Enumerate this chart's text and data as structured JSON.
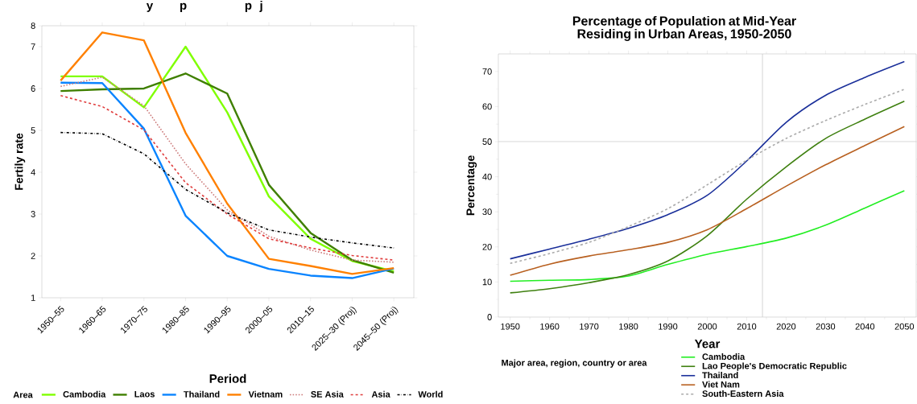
{
  "chart_data": [
    {
      "type": "line",
      "xlabel": "Period",
      "ylabel": "Fertily rate",
      "legend": "bottom",
      "legend_title": "Area",
      "annotations": [
        "y",
        "p",
        "p",
        "j"
      ],
      "categories": [
        "1950–55",
        "1960–65",
        "1970–75",
        "1980–85",
        "1990–95",
        "2000–05",
        "2010–15",
        "2025–30 (Proj)",
        "2045–50 (Proj)"
      ],
      "ylim": [
        1,
        7.5
      ],
      "yticks": [
        1,
        2,
        3,
        4,
        5,
        6,
        7,
        {
          "value": 7.5,
          "label": "8"
        }
      ],
      "series": [
        {
          "name": "Cambodia",
          "color": "#80ff00",
          "line_style": "solid",
          "values": [
            6.29,
            6.29,
            5.55,
            7.0,
            5.43,
            3.42,
            2.41,
            1.88,
            1.63
          ]
        },
        {
          "name": "Laos",
          "color": "#3f7f00",
          "line_style": "solid",
          "values": [
            5.94,
            5.98,
            6.0,
            6.36,
            5.88,
            3.7,
            2.55,
            1.9,
            1.6
          ]
        },
        {
          "name": "Thailand",
          "color": "#0a84ff",
          "line_style": "solid",
          "values": [
            6.14,
            6.13,
            5.04,
            2.96,
            2.0,
            1.69,
            1.53,
            1.47,
            1.7
          ]
        },
        {
          "name": "Vietnam",
          "color": "#ff8000",
          "line_style": "solid",
          "values": [
            6.19,
            7.34,
            7.15,
            4.94,
            3.25,
            1.93,
            1.76,
            1.57,
            1.71
          ]
        },
        {
          "name": "SE Asia",
          "color": "#cc7a7a",
          "line_style": "dotted",
          "values": [
            6.05,
            6.27,
            5.59,
            4.2,
            3.1,
            2.47,
            2.14,
            1.9,
            1.85
          ]
        },
        {
          "name": "Asia",
          "color": "#e03c3c",
          "line_style": "dashed",
          "values": [
            5.83,
            5.57,
            5.01,
            3.75,
            3.0,
            2.41,
            2.19,
            2.01,
            1.9
          ]
        },
        {
          "name": "World",
          "color": "#000000",
          "line_style": "dashdot",
          "values": [
            4.95,
            4.92,
            4.44,
            3.59,
            3.03,
            2.62,
            2.45,
            2.31,
            2.19
          ]
        }
      ]
    },
    {
      "type": "line",
      "title": "Percentage of Population at Mid-Year Residing in Urban Areas, 1950-2050",
      "xlabel": "Year",
      "ylabel": "Percentage",
      "legend": "bottom",
      "legend_title": "Major area, region, country or area",
      "x": [
        1950,
        1960,
        1970,
        1980,
        1990,
        2000,
        2010,
        2020,
        2030,
        2040,
        2050
      ],
      "xlim": [
        1947,
        2053
      ],
      "xticks": [
        1950,
        1960,
        1970,
        1980,
        1990,
        2000,
        2010,
        2020,
        2030,
        2040,
        2050
      ],
      "ylim": [
        0,
        75
      ],
      "yticks": [
        0,
        10,
        20,
        30,
        40,
        50,
        60,
        70
      ],
      "ref_lines": [
        {
          "axis": "y",
          "value": 50,
          "color": "#c8c8c8"
        },
        {
          "axis": "x",
          "value": 2014,
          "color": "#c8c8c8"
        }
      ],
      "series": [
        {
          "name": "Cambodia",
          "color": "#22ee22",
          "line_style": "solid",
          "values": [
            10.2,
            10.5,
            10.7,
            11.7,
            15.0,
            17.9,
            20.1,
            22.5,
            26.2,
            31.1,
            36.0
          ]
        },
        {
          "name": "Lao People's Democratic Republic",
          "color": "#3f8010",
          "line_style": "solid",
          "values": [
            6.9,
            8.1,
            9.8,
            12.1,
            16.0,
            23.2,
            33.6,
            42.8,
            50.9,
            56.4,
            61.5
          ]
        },
        {
          "name": "Thailand",
          "color": "#1a2f9a",
          "line_style": "solid",
          "values": [
            16.6,
            19.4,
            22.2,
            25.3,
            29.2,
            34.7,
            44.5,
            55.5,
            63.2,
            68.3,
            72.8
          ]
        },
        {
          "name": "Viet Nam",
          "color": "#b86020",
          "line_style": "solid",
          "values": [
            11.9,
            15.1,
            17.4,
            19.2,
            21.3,
            24.9,
            30.9,
            37.3,
            43.4,
            48.9,
            54.3
          ]
        },
        {
          "name": "South-Eastern Asia",
          "color": "#aaaaaa",
          "line_style": "dashed",
          "values": [
            15.3,
            18.1,
            21.3,
            25.8,
            30.9,
            37.7,
            44.7,
            50.9,
            56.0,
            60.6,
            64.9
          ]
        }
      ]
    }
  ]
}
